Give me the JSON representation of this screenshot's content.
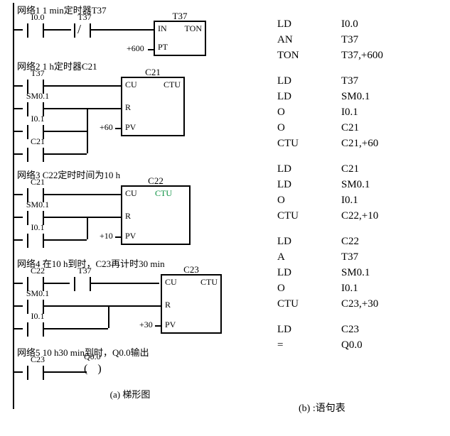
{
  "ladder": {
    "caption": "(a) 梯形图",
    "net1": {
      "title": "网络1  1 min定时器T37",
      "c1": "I0.0",
      "c2": "T37",
      "nc": true,
      "box": {
        "name": "T37",
        "in": "IN",
        "type": "TON",
        "pt": "PT",
        "pv": "+600"
      }
    },
    "net2": {
      "title": "网络2  1 h定时器C21",
      "c1": "T37",
      "c2": "SM0.1",
      "c3": "I0.1",
      "c4": "C21",
      "box": {
        "name": "C21",
        "cu": "CU",
        "type": "CTU",
        "r": "R",
        "pt": "PV",
        "pv": "+60"
      }
    },
    "net3": {
      "title": "网络3  C22定时时间为10 h",
      "c1": "C21",
      "c2": "SM0.1",
      "c3": "I0.1",
      "box": {
        "name": "C22",
        "cu": "CU",
        "type": "CTU",
        "type2": "CTU",
        "r": "R",
        "pt": "PV",
        "pv": "+10"
      }
    },
    "net4": {
      "title": "网络4  在10 h到时，C23再计时30 min",
      "c1": "C22",
      "c1b": "T37",
      "c2": "SM0.1",
      "c3": "I0.1",
      "box": {
        "name": "C23",
        "cu": "CU",
        "type": "CTU",
        "r": "R",
        "pt": "PV",
        "pv": "+30"
      }
    },
    "net5": {
      "title": "网络5  10 h30 min到时，Q0.0输出",
      "c1": "C23",
      "coil": "Q0.0"
    }
  },
  "inst": {
    "caption": "(b) :语句表",
    "rows": [
      [
        "LD",
        "I0.0"
      ],
      [
        "AN",
        "T37"
      ],
      [
        "TON",
        "T37,+600"
      ],
      [
        "",
        ""
      ],
      [
        "LD",
        "T37"
      ],
      [
        "LD",
        "SM0.1"
      ],
      [
        "O",
        "I0.1"
      ],
      [
        "O",
        "C21"
      ],
      [
        "CTU",
        "C21,+60"
      ],
      [
        "",
        ""
      ],
      [
        "LD",
        "C21"
      ],
      [
        "LD",
        "SM0.1"
      ],
      [
        "O",
        "I0.1"
      ],
      [
        "CTU",
        "C22,+10"
      ],
      [
        "",
        ""
      ],
      [
        "LD",
        "C22"
      ],
      [
        "A",
        "T37"
      ],
      [
        "LD",
        "SM0.1"
      ],
      [
        "O",
        "I0.1"
      ],
      [
        "CTU",
        "C23,+30"
      ],
      [
        "",
        ""
      ],
      [
        "LD",
        "C23"
      ],
      [
        "=",
        "Q0.0"
      ]
    ]
  }
}
